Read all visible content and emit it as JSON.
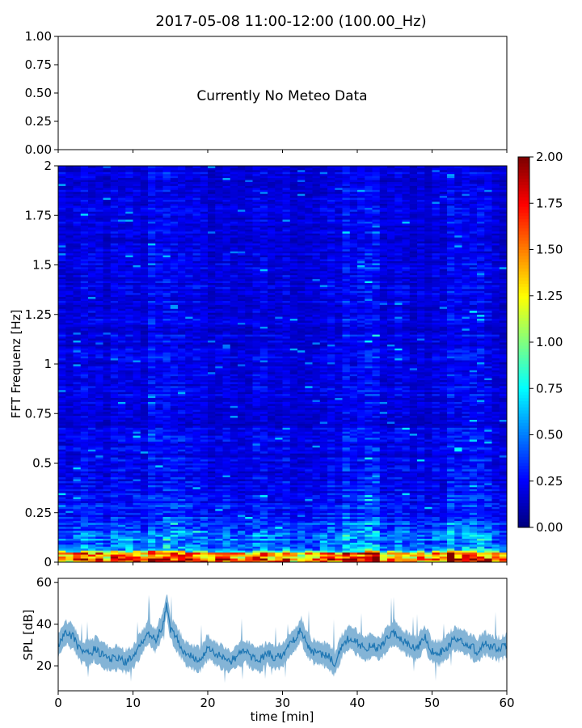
{
  "figure": {
    "title": "2017-05-08 11:00-12:00 (100.00_Hz)"
  },
  "chart_data": [
    {
      "type": "line",
      "panel": "meteo",
      "annotation": "Currently No Meteo Data",
      "ylim": [
        0,
        1
      ],
      "y_ticks": [
        "0.00",
        "0.25",
        "0.50",
        "0.75",
        "1.00"
      ],
      "y_tick_values": [
        0,
        0.25,
        0.5,
        0.75,
        1.0
      ],
      "xlim": [
        0,
        60
      ],
      "series": []
    },
    {
      "type": "heatmap",
      "panel": "spectrogram",
      "ylabel": "FFT Frequenz [Hz]",
      "ylim": [
        0,
        2
      ],
      "xlim": [
        0,
        60
      ],
      "y_ticks": [
        "0",
        "0.25",
        "0.5",
        "0.75",
        "1",
        "1.25",
        "1.5",
        "1.75",
        "2"
      ],
      "y_tick_values": [
        0,
        0.25,
        0.5,
        0.75,
        1,
        1.25,
        1.5,
        1.75,
        2
      ],
      "colormap": "jet",
      "colorbar": {
        "range": [
          0,
          2
        ],
        "ticks": [
          "0.00",
          "0.25",
          "0.50",
          "0.75",
          "1.00",
          "1.25",
          "1.50",
          "1.75",
          "2.00"
        ],
        "tick_values": [
          0,
          0.25,
          0.5,
          0.75,
          1.0,
          1.25,
          1.5,
          1.75,
          2.0
        ]
      },
      "time_bins_min": 60,
      "freq_bins": 200,
      "description_profile": {
        "bottom_band_hz": [
          0,
          0.05
        ],
        "high_activity_time_min": [
          12,
          16,
          38,
          42,
          52,
          56
        ]
      }
    },
    {
      "type": "line",
      "panel": "spl",
      "ylabel": "SPL [dB]",
      "xlabel": "time [min]",
      "xlim": [
        0,
        60
      ],
      "ylim": [
        8,
        62
      ],
      "x_ticks": [
        "0",
        "10",
        "20",
        "30",
        "40",
        "50",
        "60"
      ],
      "x_tick_values": [
        0,
        10,
        20,
        30,
        40,
        50,
        60
      ],
      "y_ticks": [
        "20",
        "40",
        "60"
      ],
      "y_tick_values": [
        20,
        40,
        60
      ],
      "color": "#1f77b4",
      "series": [
        {
          "x": [
            0,
            1,
            2,
            3,
            4,
            5,
            6,
            7,
            8,
            9,
            10,
            11,
            12,
            13,
            14,
            14.5,
            15,
            16,
            17,
            18,
            19,
            20,
            21,
            22,
            23,
            24,
            25,
            26,
            27,
            28,
            29,
            30,
            31,
            32,
            32.5,
            33,
            34,
            35,
            36,
            37,
            38,
            39,
            40,
            41,
            42,
            43,
            44,
            45,
            46,
            47,
            48,
            49,
            50,
            51,
            52,
            53,
            54,
            55,
            56,
            57,
            58,
            59,
            60
          ],
          "y": [
            30,
            36,
            34,
            27,
            26,
            28,
            25,
            23,
            24,
            22,
            24,
            30,
            36,
            32,
            40,
            50,
            38,
            32,
            26,
            24,
            23,
            29,
            26,
            24,
            22,
            25,
            27,
            24,
            23,
            26,
            24,
            25,
            30,
            34,
            38,
            32,
            27,
            26,
            25,
            21,
            30,
            34,
            31,
            28,
            30,
            28,
            33,
            36,
            32,
            30,
            28,
            34,
            27,
            26,
            29,
            33,
            32,
            30,
            27,
            31,
            29,
            28,
            30
          ]
        }
      ]
    }
  ]
}
